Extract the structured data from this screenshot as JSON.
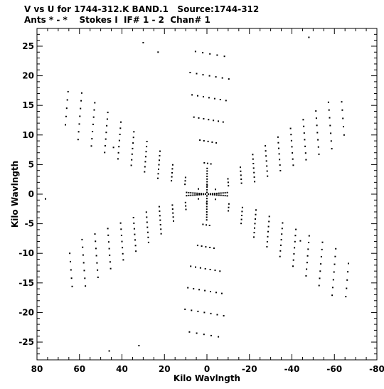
{
  "header": {
    "line1": "V vs U for 1744-312.K BAND.1   Source:1744-312",
    "line2": "Ants * - *    Stokes I  IF# 1 - 2  Chan# 1"
  },
  "chart_data": {
    "type": "scatter",
    "title": "V vs U for 1744-312.K BAND.1   Source:1744-312",
    "subtitle": "Ants * - *    Stokes I  IF# 1 - 2  Chan# 1",
    "xlabel": "Kilo Wavlngth",
    "ylabel": "Kilo Wavlngth",
    "xlim": [
      80,
      -80
    ],
    "ylim": [
      -28,
      28
    ],
    "x_reversed": true,
    "x_ticks": [
      80,
      60,
      40,
      20,
      0,
      -20,
      -40,
      -60,
      -80
    ],
    "x_tick_labels": [
      "80",
      "60",
      "40",
      "20",
      "0",
      "-20",
      "-40",
      "-60",
      "-80"
    ],
    "y_ticks": [
      25,
      20,
      15,
      10,
      5,
      0,
      -5,
      -10,
      -15,
      -20,
      -25
    ],
    "y_tick_labels": [
      "25",
      "20",
      "15",
      "10",
      "5",
      "0",
      "-5",
      "-10",
      "-15",
      "-20",
      "-25"
    ],
    "grid": false,
    "marker_color": "#000000",
    "arms": [
      {
        "dir": [
          -0.06,
          1.0
        ],
        "start": 1.5,
        "step": 3.7,
        "count": 7,
        "perp": [
          1.0,
          0.06
        ],
        "rows": 7,
        "row_step": 3.4
      },
      {
        "dir": [
          0.06,
          -1.0
        ],
        "start": 1.5,
        "step": 3.7,
        "count": 7,
        "perp": [
          -1.0,
          -0.06
        ],
        "rows": 7,
        "row_step": 3.4
      },
      {
        "dir": [
          -1.0,
          0.2
        ],
        "start": 4.0,
        "step": 6.0,
        "count": 11,
        "perp": [
          0.2,
          1.0
        ],
        "rows": 7,
        "row_step": 1.4
      },
      {
        "dir": [
          1.0,
          -0.2
        ],
        "start": 4.0,
        "step": 6.0,
        "count": 11,
        "perp": [
          -0.2,
          -1.0
        ],
        "rows": 7,
        "row_step": 1.4
      },
      {
        "dir": [
          1.0,
          0.22
        ],
        "start": 4.0,
        "step": 6.2,
        "count": 11,
        "perp": [
          -0.22,
          1.0
        ],
        "rows": 7,
        "row_step": 1.4
      },
      {
        "dir": [
          -1.0,
          -0.22
        ],
        "start": 4.0,
        "step": 6.2,
        "count": 11,
        "perp": [
          0.22,
          -1.0
        ],
        "rows": 7,
        "row_step": 1.4
      }
    ],
    "corner_points": [
      {
        "x": 30,
        "y": 25.6
      },
      {
        "x": 23,
        "y": 24
      },
      {
        "x": -48,
        "y": 26.5
      },
      {
        "x": 76,
        "y": -0.8
      },
      {
        "x": -82,
        "y": 0.8
      },
      {
        "x": 46,
        "y": -26.5
      },
      {
        "x": 32,
        "y": -25.6
      },
      {
        "x": 44,
        "y": 7.9
      },
      {
        "x": -44,
        "y": -7.9
      }
    ]
  }
}
